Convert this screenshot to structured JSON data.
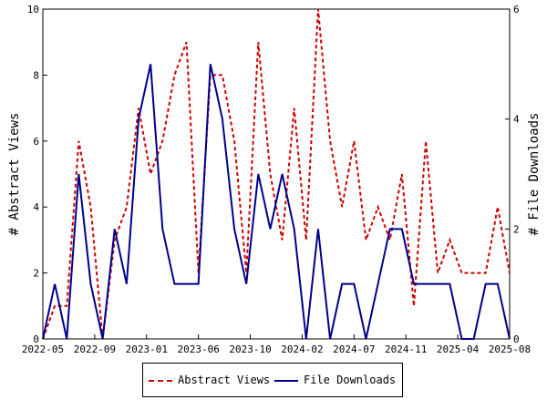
{
  "chart_data": {
    "type": "line",
    "xlabel": "",
    "ylabel": "# Abstract Views",
    "y2label": "# File Downloads",
    "x_tick_labels": [
      "2022-05",
      "2022-09",
      "2023-01",
      "2023-06",
      "2023-10",
      "2024-02",
      "2024-07",
      "2024-11",
      "2025-04",
      "2025-08"
    ],
    "ylim": [
      0,
      10
    ],
    "y_ticks": [
      0,
      2,
      4,
      6,
      8,
      10
    ],
    "y2lim": [
      0,
      6
    ],
    "y2_ticks": [
      0,
      2,
      4,
      6
    ],
    "grid": false,
    "legend_position": "bottom",
    "x_count": 40,
    "series": [
      {
        "name": "Abstract Views",
        "axis": "left",
        "color": "#cc0000",
        "style": "dashed",
        "values": [
          0,
          1,
          1,
          6,
          4,
          0,
          3,
          4,
          7,
          5,
          6,
          8,
          9,
          2,
          8,
          8,
          6,
          2,
          9,
          5,
          3,
          7,
          3,
          10,
          6,
          4,
          6,
          3,
          4,
          3,
          5,
          1,
          6,
          2,
          3,
          2,
          2,
          2,
          4,
          2
        ]
      },
      {
        "name": "File Downloads",
        "axis": "right",
        "color": "#00008b",
        "style": "solid",
        "values": [
          0,
          1,
          0,
          3,
          1,
          0,
          2,
          1,
          4,
          5,
          2,
          1,
          1,
          1,
          5,
          4,
          2,
          1,
          3,
          2,
          3,
          2,
          0,
          2,
          0,
          1,
          1,
          0,
          1,
          2,
          2,
          1,
          1,
          1,
          1,
          0,
          0,
          1,
          1,
          0
        ]
      }
    ]
  }
}
